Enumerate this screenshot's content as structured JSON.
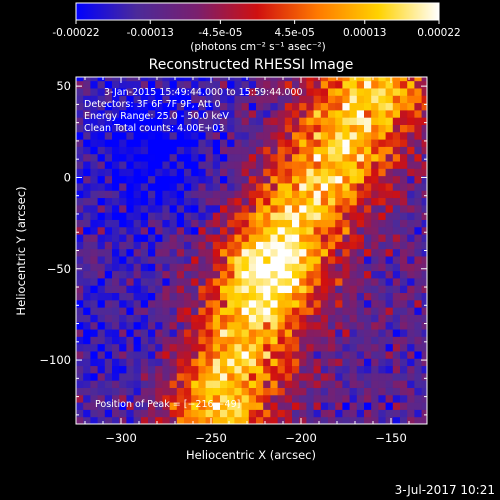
{
  "colorbar": {
    "tick_labels": [
      "-0.00022",
      "-0.00013",
      "-4.5e-05",
      "4.5e-05",
      "0.00013",
      "0.00022"
    ],
    "tick_values": [
      -0.00022,
      -0.00013,
      -4.5e-05,
      4.5e-05,
      0.00013,
      0.00022
    ],
    "range": [
      -0.00022,
      0.00022
    ],
    "units": "(photons cm⁻² s⁻¹ asec⁻²)",
    "colormap_stops": [
      "#0000ff",
      "#4b2a9a",
      "#7a1f6e",
      "#d01010",
      "#ff7a00",
      "#ffd200",
      "#ffffff"
    ]
  },
  "chart_data": {
    "type": "heatmap",
    "title": "Reconstructed RHESSI Image",
    "xlabel": "Heliocentric X (arcsec)",
    "ylabel": "Heliocentric Y (arcsec)",
    "xlim": [
      -325,
      -130
    ],
    "ylim": [
      -135,
      55
    ],
    "x_ticks": [
      -300,
      -250,
      -200,
      -150
    ],
    "y_ticks": [
      50,
      0,
      -50,
      -100
    ],
    "x_tick_labels": [
      "−300",
      "−250",
      "−200",
      "−150"
    ],
    "y_tick_labels": [
      "50",
      "0",
      "−50",
      "−100"
    ],
    "peak": [
      -216,
      -49
    ],
    "bright_ridge": [
      [
        -160,
        50
      ],
      [
        -185,
        5
      ],
      [
        -205,
        -25
      ],
      [
        -216,
        -49
      ],
      [
        -228,
        -75
      ],
      [
        -240,
        -105
      ],
      [
        -245,
        -130
      ]
    ],
    "info_lines": [
      "3-Jan-2015 15:49:44.000 to 15:59:44.000",
      "Detectors: 3F 6F 7F 9F, Att 0",
      "Energy Range: 25.0 - 50.0 keV",
      "Clean     Total counts: 4.00E+03"
    ],
    "peak_label": "Position of Peak = [−216,−49]"
  },
  "footer": {
    "timestamp": "3-Jul-2017 10:21"
  }
}
